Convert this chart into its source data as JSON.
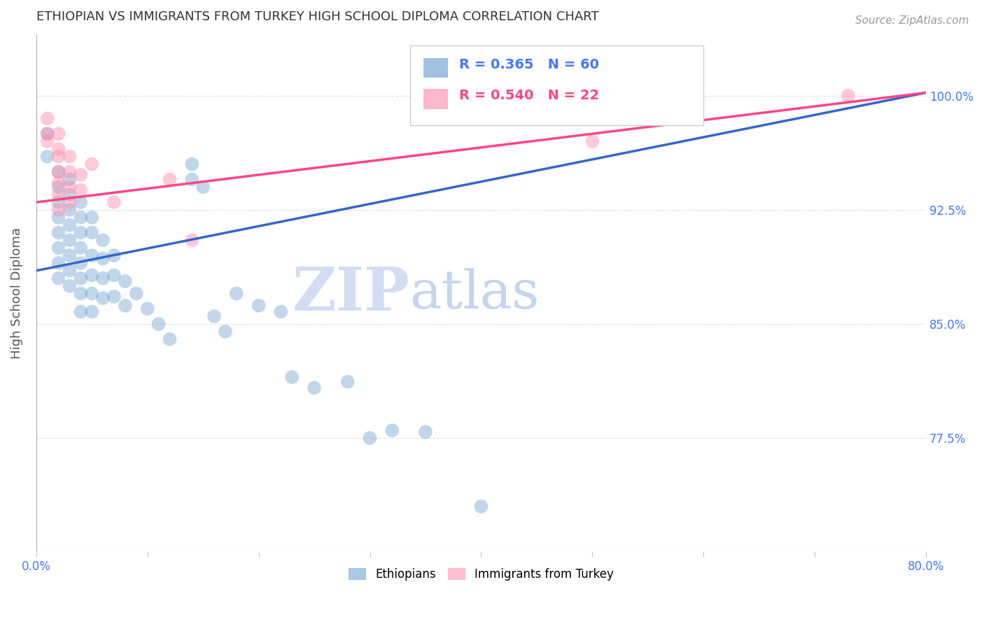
{
  "title": "ETHIOPIAN VS IMMIGRANTS FROM TURKEY HIGH SCHOOL DIPLOMA CORRELATION CHART",
  "source": "Source: ZipAtlas.com",
  "ylabel": "High School Diploma",
  "xlim": [
    0.0,
    0.8
  ],
  "ylim": [
    0.7,
    1.04
  ],
  "xticks": [
    0.0,
    0.1,
    0.2,
    0.3,
    0.4,
    0.5,
    0.6,
    0.7,
    0.8
  ],
  "xticklabels_show": [
    "0.0%",
    "80.0%"
  ],
  "yticks": [
    0.775,
    0.85,
    0.925,
    1.0
  ],
  "yticklabels": [
    "77.5%",
    "85.0%",
    "92.5%",
    "100.0%"
  ],
  "legend_entries": [
    "Ethiopians",
    "Immigrants from Turkey"
  ],
  "R_blue": 0.365,
  "N_blue": 60,
  "R_pink": 0.54,
  "N_pink": 22,
  "blue_color": "#6699CC",
  "pink_color": "#FF88AA",
  "blue_line_color": "#3366CC",
  "pink_line_color": "#FF4488",
  "blue_scatter": [
    [
      0.01,
      0.96
    ],
    [
      0.01,
      0.975
    ],
    [
      0.02,
      0.95
    ],
    [
      0.02,
      0.94
    ],
    [
      0.02,
      0.93
    ],
    [
      0.02,
      0.92
    ],
    [
      0.02,
      0.91
    ],
    [
      0.02,
      0.9
    ],
    [
      0.02,
      0.89
    ],
    [
      0.02,
      0.88
    ],
    [
      0.03,
      0.945
    ],
    [
      0.03,
      0.935
    ],
    [
      0.03,
      0.925
    ],
    [
      0.03,
      0.915
    ],
    [
      0.03,
      0.905
    ],
    [
      0.03,
      0.895
    ],
    [
      0.03,
      0.885
    ],
    [
      0.03,
      0.875
    ],
    [
      0.04,
      0.93
    ],
    [
      0.04,
      0.92
    ],
    [
      0.04,
      0.91
    ],
    [
      0.04,
      0.9
    ],
    [
      0.04,
      0.89
    ],
    [
      0.04,
      0.88
    ],
    [
      0.04,
      0.87
    ],
    [
      0.04,
      0.858
    ],
    [
      0.05,
      0.92
    ],
    [
      0.05,
      0.91
    ],
    [
      0.05,
      0.895
    ],
    [
      0.05,
      0.882
    ],
    [
      0.05,
      0.87
    ],
    [
      0.05,
      0.858
    ],
    [
      0.06,
      0.905
    ],
    [
      0.06,
      0.893
    ],
    [
      0.06,
      0.88
    ],
    [
      0.06,
      0.867
    ],
    [
      0.07,
      0.895
    ],
    [
      0.07,
      0.882
    ],
    [
      0.07,
      0.868
    ],
    [
      0.08,
      0.878
    ],
    [
      0.08,
      0.862
    ],
    [
      0.09,
      0.87
    ],
    [
      0.1,
      0.86
    ],
    [
      0.11,
      0.85
    ],
    [
      0.12,
      0.84
    ],
    [
      0.14,
      0.955
    ],
    [
      0.14,
      0.945
    ],
    [
      0.15,
      0.94
    ],
    [
      0.16,
      0.855
    ],
    [
      0.17,
      0.845
    ],
    [
      0.18,
      0.87
    ],
    [
      0.2,
      0.862
    ],
    [
      0.22,
      0.858
    ],
    [
      0.23,
      0.815
    ],
    [
      0.25,
      0.808
    ],
    [
      0.28,
      0.812
    ],
    [
      0.3,
      0.775
    ],
    [
      0.32,
      0.78
    ],
    [
      0.35,
      0.779
    ],
    [
      0.4,
      0.73
    ]
  ],
  "pink_scatter": [
    [
      0.01,
      0.985
    ],
    [
      0.01,
      0.975
    ],
    [
      0.01,
      0.97
    ],
    [
      0.02,
      0.975
    ],
    [
      0.02,
      0.965
    ],
    [
      0.02,
      0.96
    ],
    [
      0.02,
      0.95
    ],
    [
      0.02,
      0.943
    ],
    [
      0.02,
      0.935
    ],
    [
      0.02,
      0.925
    ],
    [
      0.03,
      0.96
    ],
    [
      0.03,
      0.95
    ],
    [
      0.03,
      0.94
    ],
    [
      0.03,
      0.93
    ],
    [
      0.04,
      0.948
    ],
    [
      0.04,
      0.938
    ],
    [
      0.05,
      0.955
    ],
    [
      0.07,
      0.93
    ],
    [
      0.12,
      0.945
    ],
    [
      0.14,
      0.905
    ],
    [
      0.5,
      0.97
    ],
    [
      0.73,
      1.0
    ]
  ],
  "watermark_zip": "ZIP",
  "watermark_atlas": "atlas",
  "background_color": "#ffffff",
  "grid_color": "#dddddd",
  "title_fontsize": 13,
  "axis_tick_fontsize": 12
}
